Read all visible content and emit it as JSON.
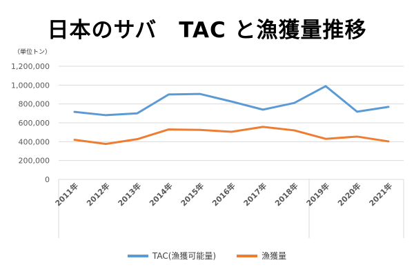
{
  "chart_data": {
    "type": "line",
    "title": "日本のサバ　TAC と漁獲量推移",
    "unit_label": "（単位トン）",
    "categories": [
      "2011年",
      "2012年",
      "2013年",
      "2014年",
      "2015年",
      "2016年",
      "2017年",
      "2018年",
      "2019年",
      "2020年",
      "2021年"
    ],
    "ylim": [
      0,
      1200000
    ],
    "yticks": [
      "0",
      "200,000",
      "400,000",
      "600,000",
      "800,000",
      "1,000,000",
      "1,200,000"
    ],
    "ytick_values": [
      0,
      200000,
      400000,
      600000,
      800000,
      1000000,
      1200000
    ],
    "grid": true,
    "legend_position": "bottom",
    "series": [
      {
        "name": "TAC(漁獲可能量)",
        "color": "#5b9bd5",
        "values": [
          716000,
          681000,
          701000,
          901000,
          906000,
          826000,
          740000,
          811000,
          989000,
          718000,
          769000
        ]
      },
      {
        "name": "漁獲量",
        "color": "#ed7d31",
        "values": [
          420000,
          376000,
          427000,
          530000,
          525000,
          505000,
          557000,
          520000,
          430000,
          454000,
          403000
        ]
      }
    ]
  }
}
